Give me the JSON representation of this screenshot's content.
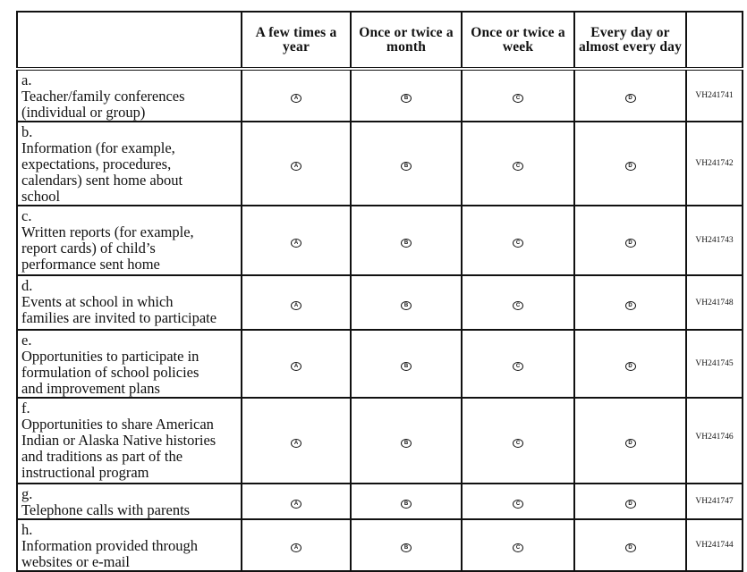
{
  "headers": [
    "",
    "A few times a year",
    "Once or twice a month",
    "Once or twice a week",
    "Every day or almost every day",
    ""
  ],
  "options": [
    "A",
    "B",
    "C",
    "D"
  ],
  "rows": [
    {
      "label": "a.",
      "text": "Teacher/family conferences (individual or group)",
      "id": "VH241741"
    },
    {
      "label": "b.",
      "text": "Information (for example, expectations, procedures, calendars) sent home about school",
      "id": "VH241742"
    },
    {
      "label": "c.",
      "text": "Written reports (for example, report cards) of child’s performance sent home",
      "id": "VH241743"
    },
    {
      "label": "d.",
      "text": "Events at school in which families are invited to participate",
      "id": "VH241748"
    },
    {
      "label": "e.",
      "text": "Opportunities to participate in formulation of school policies and improvement plans",
      "id": "VH241745"
    },
    {
      "label": "f.",
      "text": "Opportunities to share American Indian or Alaska Native histories and traditions as part of the instructional program",
      "id": "VH241746"
    },
    {
      "label": "g.",
      "text": "Telephone calls with parents",
      "id": "VH241747"
    },
    {
      "label": "h.",
      "text": "Information provided through websites or e-mail",
      "id": "VH241744"
    }
  ]
}
